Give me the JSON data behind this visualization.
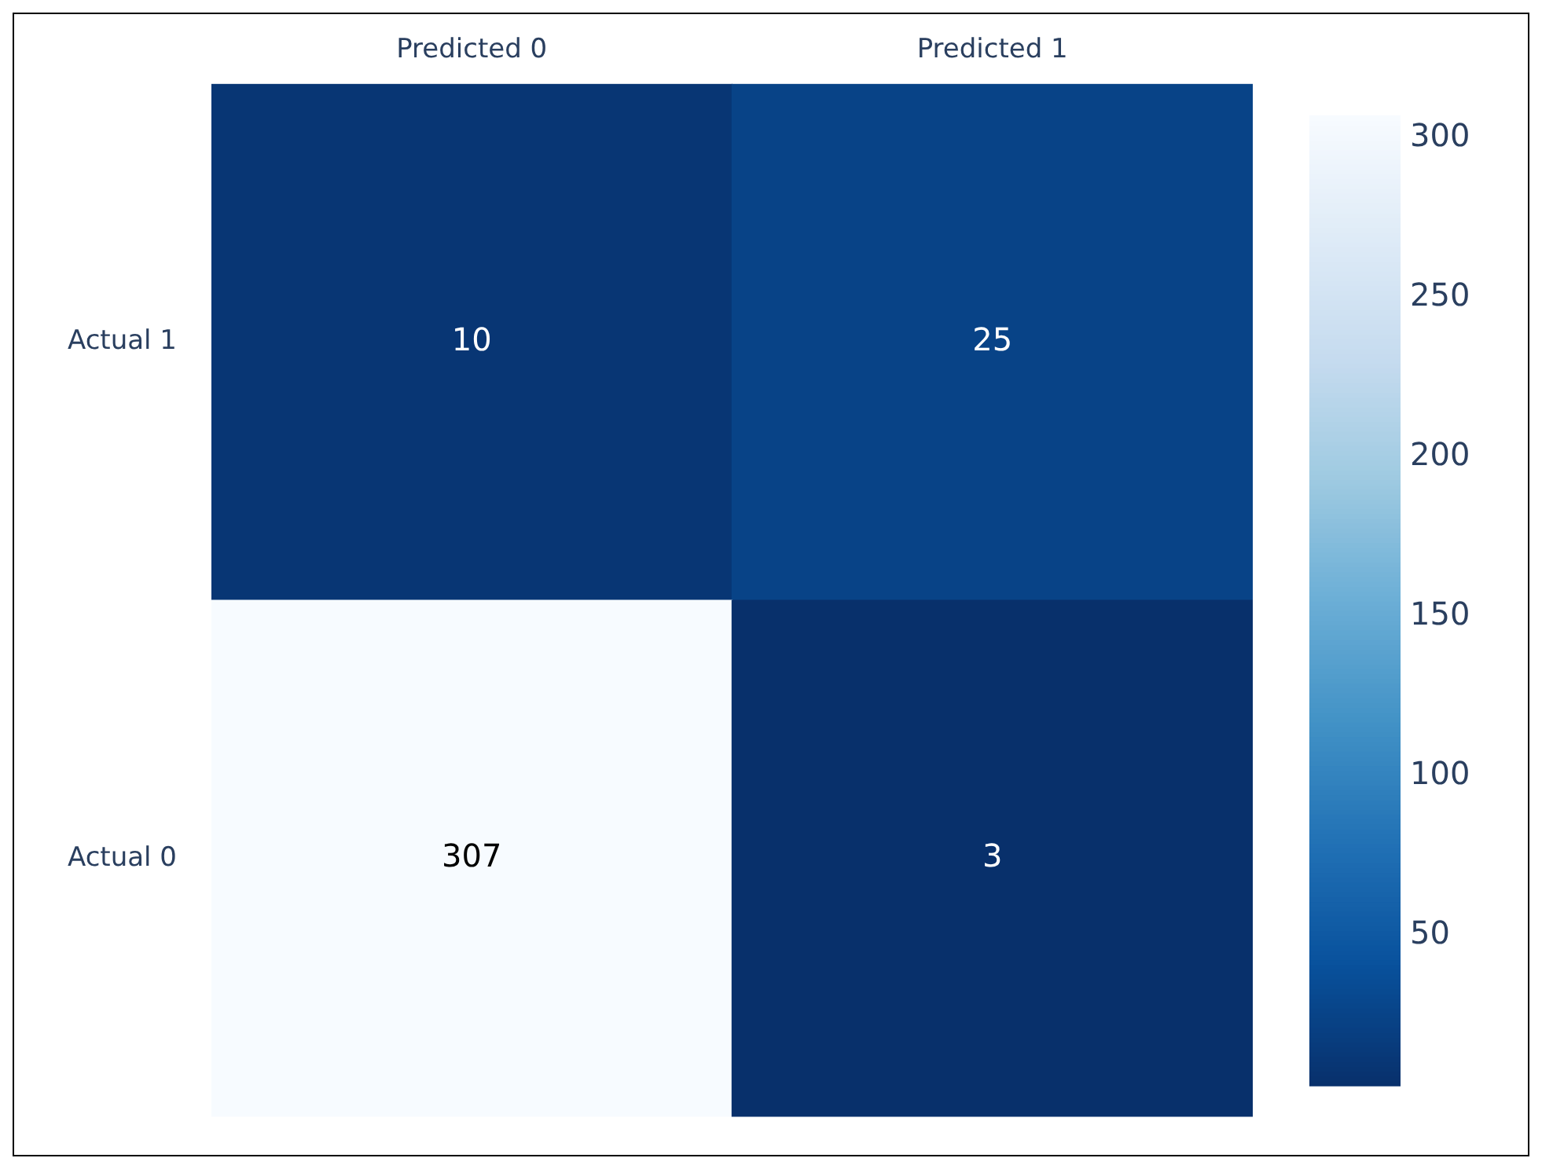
{
  "chart_data": {
    "type": "heatmap",
    "categories": [
      "Predicted 0",
      "Predicted 1"
    ],
    "y_categories": [
      "Actual 1",
      "Actual 0"
    ],
    "cells": [
      [
        10,
        25
      ],
      [
        307,
        3
      ]
    ],
    "clim": [
      3,
      307
    ],
    "cticks": [
      50,
      100,
      150,
      200,
      250,
      300
    ],
    "data_labels": true
  }
}
